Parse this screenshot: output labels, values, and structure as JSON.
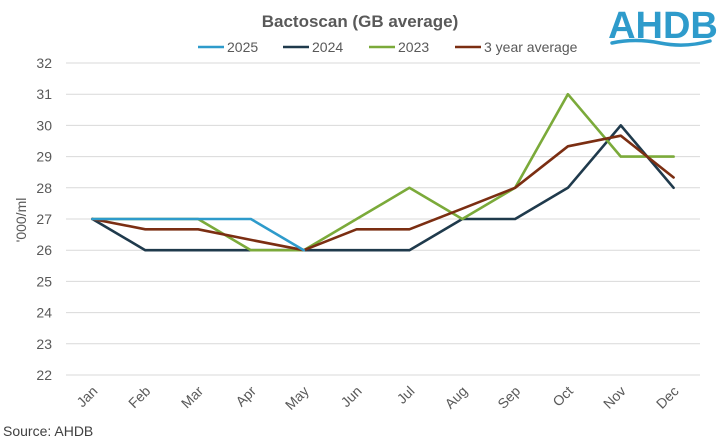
{
  "chart_data": {
    "type": "line",
    "title": "Bactoscan (GB average)",
    "xlabel": "",
    "ylabel": "'000/ml",
    "ylim": [
      22,
      32
    ],
    "yticks": [
      22,
      23,
      24,
      25,
      26,
      27,
      28,
      29,
      30,
      31,
      32
    ],
    "grid": true,
    "legend_position": "top",
    "categories": [
      "Jan",
      "Feb",
      "Mar",
      "Apr",
      "May",
      "Jun",
      "Jul",
      "Aug",
      "Sep",
      "Oct",
      "Nov",
      "Dec"
    ],
    "series": [
      {
        "name": "2025",
        "color": "#2E9BCB",
        "values": [
          27,
          27,
          27,
          27,
          26,
          null,
          null,
          null,
          null,
          null,
          null,
          null
        ]
      },
      {
        "name": "2024",
        "color": "#1F3A4C",
        "values": [
          27,
          26,
          26,
          26,
          26,
          26,
          26,
          27,
          27,
          28,
          30,
          28
        ]
      },
      {
        "name": "2023",
        "color": "#7BAA3A",
        "values": [
          27,
          27,
          27,
          26,
          26,
          27,
          28,
          27,
          28,
          31,
          29,
          29
        ]
      },
      {
        "name": "3 year average",
        "color": "#7B2E12",
        "values": [
          27,
          26.67,
          26.67,
          26.33,
          26,
          26.67,
          26.67,
          27.33,
          28,
          29.33,
          29.67,
          28.33
        ]
      }
    ]
  },
  "source": "Source: AHDB",
  "logo": {
    "text": "AHDB",
    "color": "#2E9BCB"
  }
}
